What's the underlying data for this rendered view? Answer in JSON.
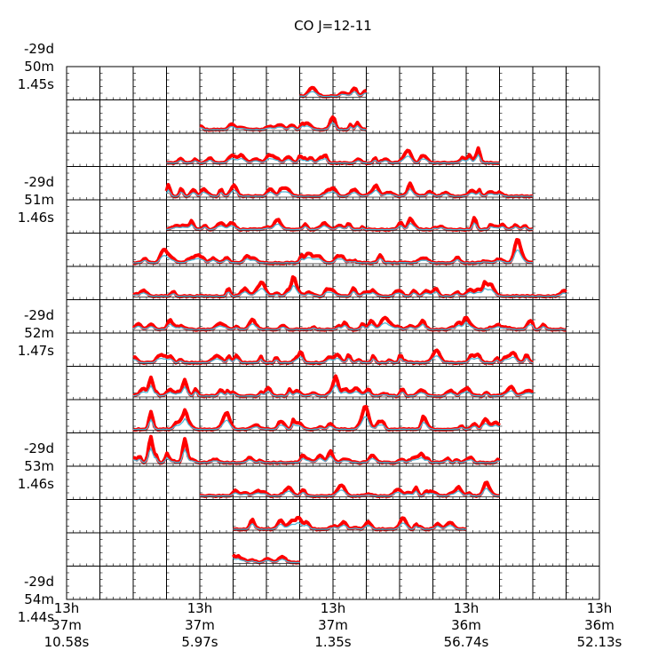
{
  "chart_data": {
    "type": "line",
    "title": "CO J=12-11",
    "grid": true,
    "series": [
      {
        "color": "#ff0000",
        "style": "thick"
      },
      {
        "color": "#4fb6d6",
        "style": "thin"
      }
    ],
    "panel_grid": {
      "rows": 16,
      "cols": 16
    },
    "y_tick_labels": [
      {
        "row": 0,
        "lines": [
          "-29d",
          "50m",
          "1.45s"
        ]
      },
      {
        "row": 4,
        "lines": [
          "-29d",
          "51m",
          "1.46s"
        ]
      },
      {
        "row": 8,
        "lines": [
          "-29d",
          "52m",
          "1.47s"
        ]
      },
      {
        "row": 12,
        "lines": [
          "-29d",
          "53m",
          "1.46s"
        ]
      },
      {
        "row": 16,
        "lines": [
          "-29d",
          "54m",
          "1.44s"
        ]
      }
    ],
    "x_tick_labels": [
      {
        "col": 0,
        "lines": [
          "13h",
          "37m",
          "10.58s"
        ]
      },
      {
        "col": 4,
        "lines": [
          "13h",
          "37m",
          "5.97s"
        ]
      },
      {
        "col": 8,
        "lines": [
          "13h",
          "37m",
          "1.35s"
        ]
      },
      {
        "col": 12,
        "lines": [
          "13h",
          "36m",
          "56.74s"
        ]
      },
      {
        "col": 16,
        "lines": [
          "13h",
          "36m",
          "52.13s"
        ]
      }
    ],
    "spectra_rows": [
      {
        "row": 0,
        "from": 7,
        "to": 8
      },
      {
        "row": 1,
        "from": 4,
        "to": 8
      },
      {
        "row": 2,
        "from": 3,
        "to": 12
      },
      {
        "row": 3,
        "from": 3,
        "to": 13
      },
      {
        "row": 4,
        "from": 3,
        "to": 13
      },
      {
        "row": 5,
        "from": 2,
        "to": 13
      },
      {
        "row": 6,
        "from": 2,
        "to": 14
      },
      {
        "row": 7,
        "from": 2,
        "to": 14
      },
      {
        "row": 8,
        "from": 2,
        "to": 13
      },
      {
        "row": 9,
        "from": 2,
        "to": 13
      },
      {
        "row": 10,
        "from": 2,
        "to": 12
      },
      {
        "row": 11,
        "from": 2,
        "to": 12
      },
      {
        "row": 12,
        "from": 4,
        "to": 12
      },
      {
        "row": 13,
        "from": 5,
        "to": 11
      },
      {
        "row": 14,
        "from": 5,
        "to": 6
      }
    ]
  }
}
